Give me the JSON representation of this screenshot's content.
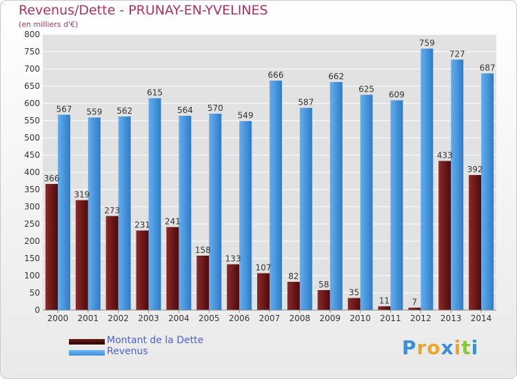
{
  "title": "Revenus/Dette - PRUNAY-EN-YVELINES",
  "subtitle": "(en milliers d'€)",
  "logo": {
    "text": "Proxiti",
    "letters": [
      "P",
      "r",
      "o",
      "x",
      "i",
      "t",
      "i"
    ],
    "colors": [
      "#3b8fd9",
      "#e8a82c",
      "#e8a82c",
      "#3b8fd9",
      "#e8a82c",
      "#8cc63f",
      "#3b8fd9"
    ]
  },
  "colors": {
    "dette": "#6b1a1a",
    "revenus": "#3f8fd8",
    "grid": "#ffffff",
    "plot_bg": "#e2e2e2",
    "axis_text": "#333333"
  },
  "chart_data": {
    "type": "bar",
    "title": "Revenus/Dette - PRUNAY-EN-YVELINES",
    "subtitle": "(en milliers d'€)",
    "categories": [
      "2000",
      "2001",
      "2002",
      "2003",
      "2004",
      "2005",
      "2006",
      "2007",
      "2008",
      "2009",
      "2010",
      "2011",
      "2012",
      "2013",
      "2014"
    ],
    "series": [
      {
        "name": "Montant de la Dette",
        "values": [
          366,
          319,
          273,
          231,
          241,
          158,
          133,
          107,
          82,
          58,
          35,
          11,
          7,
          433,
          392
        ]
      },
      {
        "name": "Revenus",
        "values": [
          567,
          559,
          562,
          615,
          564,
          570,
          549,
          666,
          587,
          662,
          625,
          609,
          759,
          727,
          687
        ]
      }
    ],
    "ylim": [
      0,
      800
    ],
    "yticks": [
      0,
      50,
      100,
      150,
      200,
      250,
      300,
      350,
      400,
      450,
      500,
      550,
      600,
      650,
      700,
      750,
      800
    ],
    "grid": true,
    "legend": "bottom-left"
  }
}
